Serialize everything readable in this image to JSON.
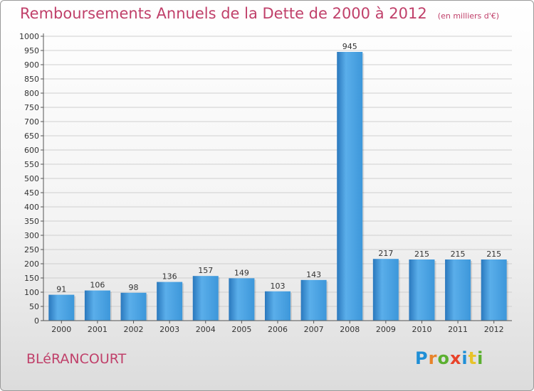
{
  "header": {
    "title": "Remboursements Annuels de la Dette de 2000 à 2012",
    "unit": "(en milliers d'€)"
  },
  "footer": {
    "commune": "BLéRANCOURT",
    "logo_text": "Proxiti",
    "logo_colors": [
      "#1f8fd6",
      "#e8832a",
      "#5bb030",
      "#e8432a",
      "#1f8fd6",
      "#e8c32a",
      "#5bb030"
    ]
  },
  "colors": {
    "bar": "#3d97da",
    "bar_dark": "#2a78bd",
    "bar_light": "#5aaeea",
    "grid": "#cfcfcf",
    "title": "#c0406a"
  },
  "chart_data": {
    "type": "bar",
    "categories": [
      "2000",
      "2001",
      "2002",
      "2003",
      "2004",
      "2005",
      "2006",
      "2007",
      "2008",
      "2009",
      "2010",
      "2011",
      "2012"
    ],
    "values": [
      91,
      106,
      98,
      136,
      157,
      149,
      103,
      143,
      945,
      217,
      215,
      215,
      215
    ],
    "title": "Remboursements Annuels de la Dette de 2000 à 2012",
    "ylabel": "",
    "xlabel": "",
    "ylim": [
      0,
      1000
    ],
    "ytick_step": 50,
    "grid": true
  }
}
